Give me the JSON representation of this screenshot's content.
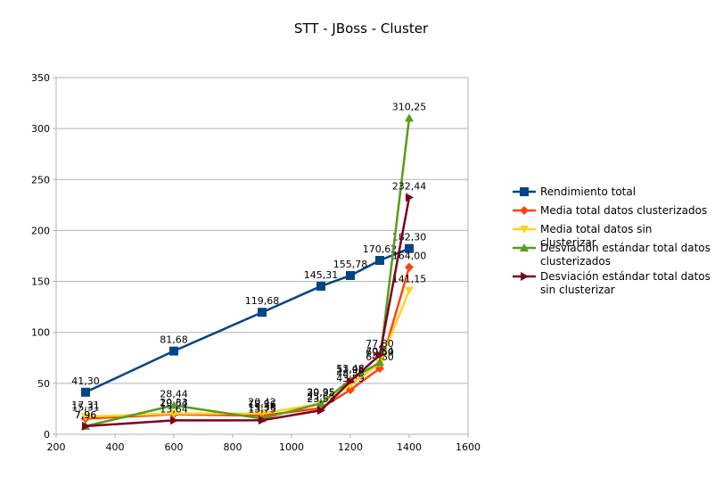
{
  "chart_data": {
    "type": "line",
    "title": "STT - JBoss - Cluster",
    "xlabel": "",
    "ylabel": "",
    "xlim": [
      200,
      1600
    ],
    "ylim": [
      0,
      350
    ],
    "x_ticks": [
      200,
      400,
      600,
      800,
      1000,
      1200,
      1400,
      1600
    ],
    "y_ticks": [
      0,
      50,
      100,
      150,
      200,
      250,
      300,
      350
    ],
    "grid": "horizontal",
    "legend": "right",
    "series": [
      {
        "name": "Rendimiento total",
        "color": "#004586",
        "marker": "square",
        "x": [
          300,
          600,
          900,
          1100,
          1200,
          1300,
          1400
        ],
        "values": [
          41.3,
          81.68,
          119.68,
          145.31,
          155.78,
          170.62,
          182.3
        ],
        "labels": [
          "41,30",
          "81,68",
          "119,68",
          "145,31",
          "155,78",
          "170,62",
          "182,30"
        ]
      },
      {
        "name": "Media total datos clusterizados",
        "color": "#ff420e",
        "marker": "diamond",
        "x": [
          300,
          600,
          900,
          1100,
          1200,
          1300,
          1400
        ],
        "values": [
          15.31,
          19.64,
          18.26,
          25.69,
          43.59,
          64.6,
          164.0
        ],
        "labels": [
          "15,31",
          "19,64",
          "18,26",
          "25,69",
          "43,59",
          "64,60",
          "164,00"
        ]
      },
      {
        "name": "Media total datos sin clusterizar",
        "color": "#ffd320",
        "marker": "triangle-down",
        "x": [
          300,
          600,
          900,
          1100,
          1200,
          1300,
          1400
        ],
        "values": [
          17.31,
          20.33,
          20.42,
          29.95,
          48.59,
          69.6,
          141.15
        ],
        "labels": [
          "17,31",
          "20,33",
          "20,42",
          "29,95",
          "48,59",
          "69,60",
          "141,15"
        ]
      },
      {
        "name": "Desviación estándar total datos clusterizados",
        "color": "#579d1c",
        "marker": "triangle-up",
        "x": [
          300,
          600,
          900,
          1100,
          1200,
          1300,
          1400
        ],
        "values": [
          7.96,
          28.44,
          15.36,
          30.35,
          53.48,
          70.54,
          310.25
        ],
        "labels": [
          "7,96",
          "28,44",
          "15,36",
          "30,35",
          "53,48",
          "70,54",
          "310,25"
        ]
      },
      {
        "name": "Desviación estándar total datos sin clusterizar",
        "color": "#7e0021",
        "marker": "triangle-right",
        "x": [
          300,
          600,
          900,
          1100,
          1200,
          1300,
          1400
        ],
        "values": [
          7.96,
          13.64,
          13.75,
          23.53,
          51.96,
          77.8,
          232.44
        ],
        "labels": [
          "7,96",
          "13,64",
          "13,75",
          "23,53",
          "51,96",
          "77,80",
          "232,44"
        ]
      }
    ]
  }
}
